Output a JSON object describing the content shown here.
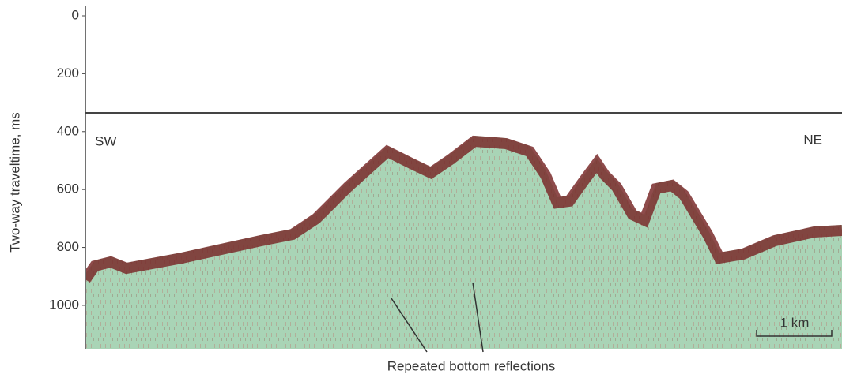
{
  "chart_data": {
    "type": "profile",
    "ylabel": "Two-way traveltime, ms",
    "ylim": [
      0,
      1150
    ],
    "yticks": [
      0,
      200,
      400,
      600,
      800,
      1000
    ],
    "annotations": {
      "left": "SW",
      "right": "NE",
      "scale": "1 km",
      "caption": "Repeated bottom reflections"
    }
  }
}
